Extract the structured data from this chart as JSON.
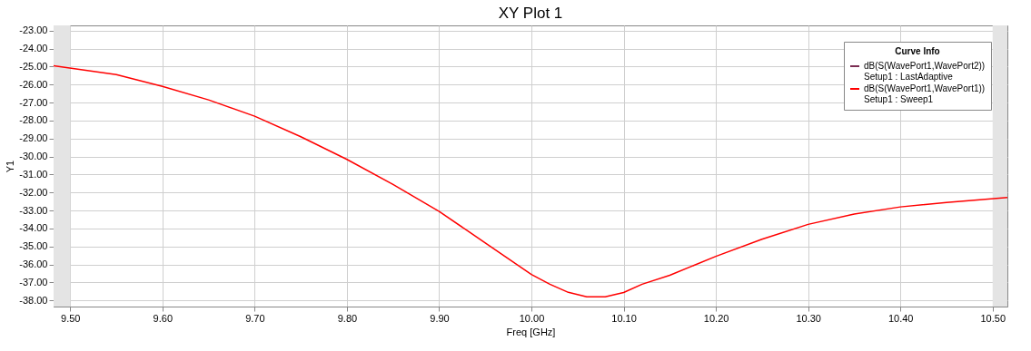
{
  "chart_data": {
    "type": "line",
    "title": "XY Plot 1",
    "xlabel": "Freq [GHz]",
    "ylabel": "Y1",
    "legend_title": "Curve Info",
    "x": [
      9.482,
      9.55,
      9.6,
      9.65,
      9.7,
      9.75,
      9.8,
      9.85,
      9.9,
      9.95,
      10.0,
      10.02,
      10.04,
      10.06,
      10.08,
      10.1,
      10.12,
      10.15,
      10.2,
      10.25,
      10.3,
      10.35,
      10.4,
      10.45,
      10.516
    ],
    "series": [
      {
        "name": "dB(S(WavePort1,WavePort2))\nSetup1 : LastAdaptive",
        "color": "#7b2d52",
        "values": [
          null,
          null,
          null,
          null,
          null,
          null,
          null,
          null,
          null,
          null,
          null,
          null,
          null,
          null,
          null,
          null,
          null,
          null,
          null,
          null,
          null,
          null,
          null,
          null,
          null
        ]
      },
      {
        "name": "dB(S(WavePort1,WavePort1))\nSetup1 : Sweep1",
        "color": "#ff0000",
        "values": [
          -24.95,
          -25.45,
          -26.1,
          -26.85,
          -27.76,
          -28.9,
          -30.16,
          -31.55,
          -33.05,
          -34.8,
          -36.56,
          -37.1,
          -37.55,
          -37.8,
          -37.8,
          -37.56,
          -37.1,
          -36.6,
          -35.55,
          -34.6,
          -33.77,
          -33.2,
          -32.8,
          -32.55,
          -32.28
        ]
      }
    ],
    "xlim": [
      9.482,
      10.516
    ],
    "ylim": [
      -38.34,
      -22.71
    ],
    "xticks": [
      {
        "value": 9.5,
        "label": "9.50"
      },
      {
        "value": 9.6,
        "label": "9.60"
      },
      {
        "value": 9.7,
        "label": "9.70"
      },
      {
        "value": 9.8,
        "label": "9.80"
      },
      {
        "value": 9.9,
        "label": "9.90"
      },
      {
        "value": 10.0,
        "label": "10.00"
      },
      {
        "value": 10.1,
        "label": "10.10"
      },
      {
        "value": 10.2,
        "label": "10.20"
      },
      {
        "value": 10.3,
        "label": "10.30"
      },
      {
        "value": 10.4,
        "label": "10.40"
      },
      {
        "value": 10.5,
        "label": "10.50"
      }
    ],
    "yticks": [
      {
        "value": -23,
        "label": "-23.00"
      },
      {
        "value": -24,
        "label": "-24.00"
      },
      {
        "value": -25,
        "label": "-25.00"
      },
      {
        "value": -26,
        "label": "-26.00"
      },
      {
        "value": -27,
        "label": "-27.00"
      },
      {
        "value": -28,
        "label": "-28.00"
      },
      {
        "value": -29,
        "label": "-29.00"
      },
      {
        "value": -30,
        "label": "-30.00"
      },
      {
        "value": -31,
        "label": "-31.00"
      },
      {
        "value": -32,
        "label": "-32.00"
      },
      {
        "value": -33,
        "label": "-33.00"
      },
      {
        "value": -34,
        "label": "-34.00"
      },
      {
        "value": -35,
        "label": "-35.00"
      },
      {
        "value": -36,
        "label": "-36.00"
      },
      {
        "value": -37,
        "label": "-37.00"
      },
      {
        "value": -38,
        "label": "-38.00"
      }
    ],
    "bands": [
      {
        "axis": "x",
        "from": 9.482,
        "to": 9.5,
        "color": "#e4e4e4"
      },
      {
        "axis": "x",
        "from": 10.5,
        "to": 10.516,
        "color": "#e4e4e4"
      }
    ],
    "grid": true,
    "legend": "top right",
    "line_style": "solid",
    "marker": "none"
  }
}
